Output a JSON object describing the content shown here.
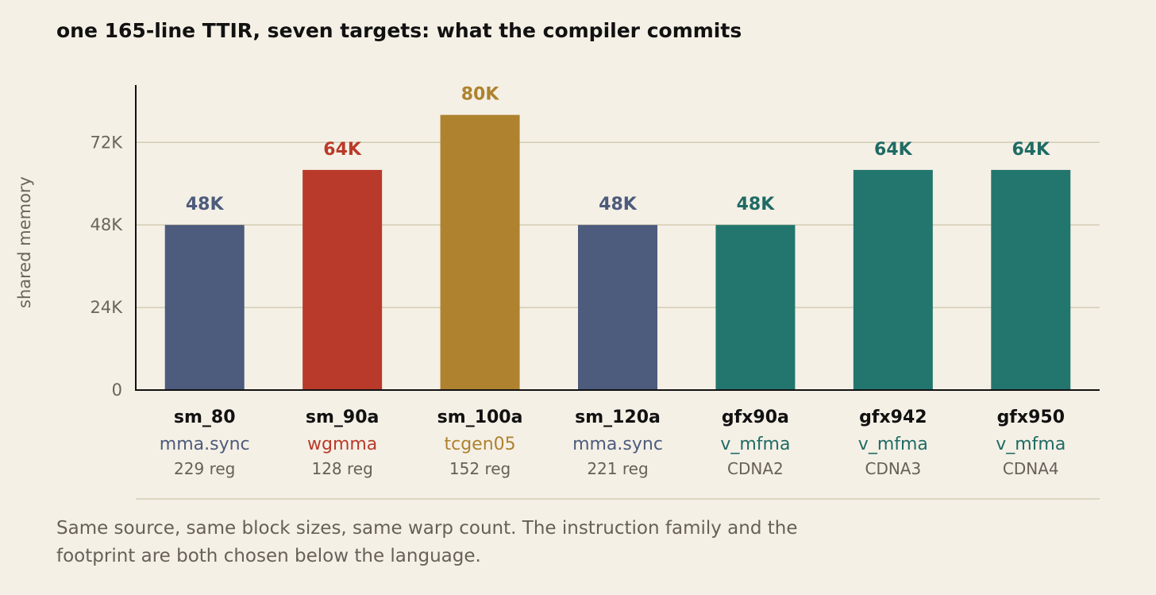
{
  "title": "one 165-line TTIR, seven targets: what the compiler commits",
  "caption": "Same source, same block sizes, same warp count. The instruction family and the footprint are both chosen below the language.",
  "colors": {
    "background": "#f5f0e6",
    "grid": "#d3ccb4",
    "axis": "#111111",
    "tick_text": "#6a655c",
    "label_text": "#111111",
    "sub_text": "#666058"
  },
  "chart_data": {
    "type": "bar",
    "ylabel": "shared memory",
    "ylim": [
      0,
      88
    ],
    "yticks": [
      {
        "value": 0,
        "label": "0"
      },
      {
        "value": 24,
        "label": "24K"
      },
      {
        "value": 48,
        "label": "48K"
      },
      {
        "value": 72,
        "label": "72K"
      }
    ],
    "grid": true,
    "bars": [
      {
        "category": "sm_80",
        "instr": "mma.sync",
        "detail": "229 reg",
        "value": 48,
        "label": "48K",
        "color": "#4d5b7c",
        "label_color": "#4d5b7c"
      },
      {
        "category": "sm_90a",
        "instr": "wgmma",
        "detail": "128 reg",
        "value": 64,
        "label": "64K",
        "color": "#b93a2a",
        "label_color": "#b93a2a"
      },
      {
        "category": "sm_100a",
        "instr": "tcgen05",
        "detail": "152 reg",
        "value": 80,
        "label": "80K",
        "color": "#ae822f",
        "label_color": "#ae822f"
      },
      {
        "category": "sm_120a",
        "instr": "mma.sync",
        "detail": "221 reg",
        "value": 48,
        "label": "48K",
        "color": "#4d5b7c",
        "label_color": "#4d5b7c"
      },
      {
        "category": "gfx90a",
        "instr": "v_mfma",
        "detail": "CDNA2",
        "value": 48,
        "label": "48K",
        "color": "#23766e",
        "label_color": "#1f6b64"
      },
      {
        "category": "gfx942",
        "instr": "v_mfma",
        "detail": "CDNA3",
        "value": 64,
        "label": "64K",
        "color": "#23766e",
        "label_color": "#1f6b64"
      },
      {
        "category": "gfx950",
        "instr": "v_mfma",
        "detail": "CDNA4",
        "value": 64,
        "label": "64K",
        "color": "#23766e",
        "label_color": "#1f6b64"
      }
    ]
  }
}
